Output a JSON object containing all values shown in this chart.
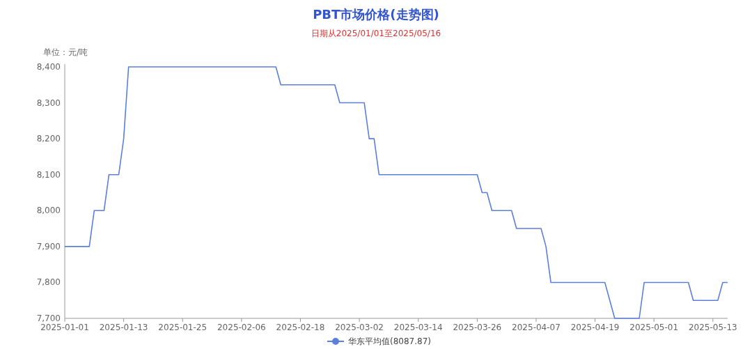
{
  "chart_data": {
    "type": "line",
    "title": "PBT市场价格(走势图)",
    "subtitle": "日期从2025/01/01至2025/05/16",
    "ylabel": "单位：元/吨",
    "x": [
      "2025-01-01",
      "2025-01-06",
      "2025-01-07",
      "2025-01-09",
      "2025-01-10",
      "2025-01-12",
      "2025-01-13",
      "2025-01-14",
      "2025-02-13",
      "2025-02-14",
      "2025-02-25",
      "2025-02-26",
      "2025-03-03",
      "2025-03-04",
      "2025-03-05",
      "2025-03-06",
      "2025-03-26",
      "2025-03-27",
      "2025-03-28",
      "2025-03-29",
      "2025-04-02",
      "2025-04-03",
      "2025-04-08",
      "2025-04-09",
      "2025-04-10",
      "2025-04-21",
      "2025-04-23",
      "2025-04-28",
      "2025-04-29",
      "2025-05-08",
      "2025-05-09",
      "2025-05-14",
      "2025-05-15",
      "2025-05-16"
    ],
    "series": [
      {
        "name": "华东平均值(8087.87)",
        "color": "#5b7fdb",
        "values": [
          7900,
          7900,
          8000,
          8000,
          8100,
          8100,
          8200,
          8400,
          8400,
          8350,
          8350,
          8300,
          8300,
          8200,
          8200,
          8100,
          8100,
          8050,
          8050,
          8000,
          8000,
          7950,
          7950,
          7900,
          7800,
          7800,
          7700,
          7700,
          7800,
          7800,
          7750,
          7750,
          7800,
          7800
        ]
      }
    ],
    "xlim": [
      "2025-01-01",
      "2025-05-16"
    ],
    "xticks": [
      {
        "value": "2025-01-01",
        "label": "2025-01-01"
      },
      {
        "value": "2025-01-13",
        "label": "2025-01-13"
      },
      {
        "value": "2025-01-25",
        "label": "2025-01-25"
      },
      {
        "value": "2025-02-06",
        "label": "2025-02-06"
      },
      {
        "value": "2025-02-18",
        "label": "2025-02-18"
      },
      {
        "value": "2025-03-02",
        "label": "2025-03-02"
      },
      {
        "value": "2025-03-14",
        "label": "2025-03-14"
      },
      {
        "value": "2025-03-26",
        "label": "2025-03-26"
      },
      {
        "value": "2025-04-07",
        "label": "2025-04-07"
      },
      {
        "value": "2025-04-19",
        "label": "2025-04-19"
      },
      {
        "value": "2025-05-01",
        "label": "2025-05-01"
      },
      {
        "value": "2025-05-13",
        "label": "2025-05-13"
      }
    ],
    "ylim": [
      7700,
      8400
    ],
    "yticks": [
      {
        "value": 7700,
        "label": "7,700"
      },
      {
        "value": 7800,
        "label": "7,800"
      },
      {
        "value": 7900,
        "label": "7,900"
      },
      {
        "value": 8000,
        "label": "8,000"
      },
      {
        "value": 8100,
        "label": "8,100"
      },
      {
        "value": 8200,
        "label": "8,200"
      },
      {
        "value": 8300,
        "label": "8,300"
      },
      {
        "value": 8400,
        "label": "8,400"
      }
    ],
    "grid": false,
    "legend": "bottom"
  }
}
